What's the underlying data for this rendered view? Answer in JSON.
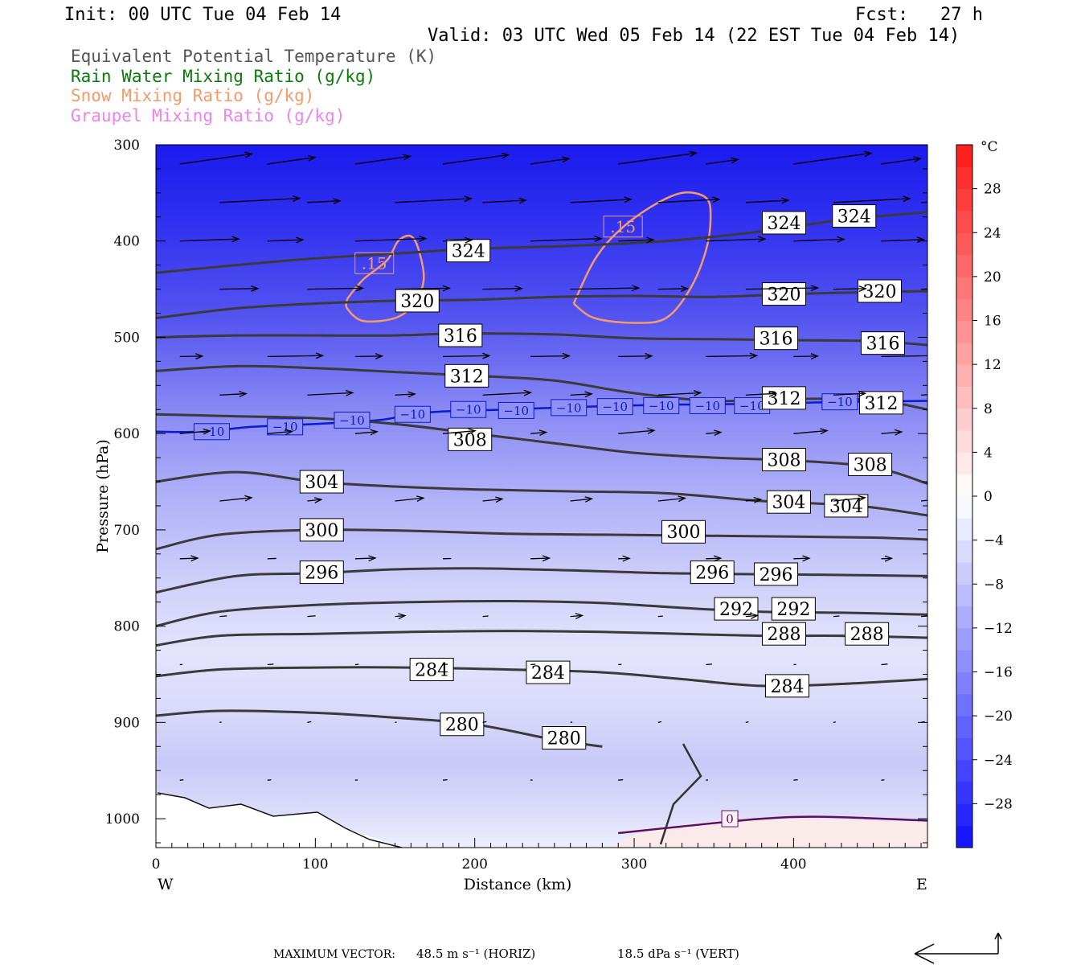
{
  "header": {
    "init": "Init: 00 UTC Tue 04 Feb 14",
    "fcst": "Fcst:   27 h",
    "valid": "Valid: 03 UTC Wed 05 Feb 14 (22 EST Tue 04 Feb 14)"
  },
  "variables": [
    {
      "label": "Equivalent Potential Temperature (K)",
      "color": "#555555"
    },
    {
      "label": "Rain Water Mixing Ratio (g/kg)",
      "color": "#0a7a0a"
    },
    {
      "label": "Snow Mixing Ratio (g/kg)",
      "color": "#f59a6a"
    },
    {
      "label": "Graupel Mixing Ratio (g/kg)",
      "color": "#ee82ee"
    }
  ],
  "chart_data": {
    "type": "cross-section",
    "xlabel": "Distance (km)",
    "ylabel": "Pressure (hPa)",
    "xlim": [
      0,
      484
    ],
    "ylim": [
      1030,
      300
    ],
    "x_ticks": [
      0,
      100,
      200,
      300,
      400
    ],
    "y_ticks": [
      300,
      400,
      500,
      600,
      700,
      800,
      900,
      1000
    ],
    "x_end_labels": {
      "left": "W",
      "right": "E"
    },
    "colorbar": {
      "unit": "°C",
      "ticks": [
        28,
        24,
        20,
        16,
        12,
        8,
        4,
        0,
        -4,
        -8,
        -12,
        -16,
        -20,
        -24,
        -28
      ],
      "range": [
        -32,
        32
      ]
    },
    "theta_e_contours": [
      {
        "value": 324,
        "points": [
          [
            0,
            433
          ],
          [
            50,
            425
          ],
          [
            100,
            418
          ],
          [
            150,
            413
          ],
          [
            200,
            408
          ],
          [
            260,
            405
          ],
          [
            320,
            400
          ],
          [
            380,
            390
          ],
          [
            430,
            378
          ],
          [
            484,
            370
          ]
        ],
        "labels": [
          [
            196,
            410
          ],
          [
            394,
            381
          ],
          [
            438,
            374
          ]
        ]
      },
      {
        "value": 320,
        "points": [
          [
            0,
            480
          ],
          [
            50,
            470
          ],
          [
            100,
            465
          ],
          [
            150,
            462
          ],
          [
            200,
            461
          ],
          [
            250,
            458
          ],
          [
            300,
            457
          ],
          [
            350,
            458
          ],
          [
            400,
            455
          ],
          [
            450,
            453
          ],
          [
            484,
            452
          ]
        ],
        "labels": [
          [
            164,
            462
          ],
          [
            394,
            455
          ],
          [
            454,
            452
          ]
        ]
      },
      {
        "value": 316,
        "points": [
          [
            0,
            500
          ],
          [
            50,
            498
          ],
          [
            100,
            498
          ],
          [
            150,
            498
          ],
          [
            190,
            496
          ],
          [
            250,
            497
          ],
          [
            300,
            501
          ],
          [
            350,
            502
          ],
          [
            400,
            503
          ],
          [
            450,
            504
          ],
          [
            484,
            508
          ]
        ],
        "labels": [
          [
            191,
            498
          ],
          [
            389,
            501
          ],
          [
            456,
            506
          ]
        ]
      },
      {
        "value": 312,
        "points": [
          [
            0,
            535
          ],
          [
            50,
            530
          ],
          [
            100,
            532
          ],
          [
            150,
            536
          ],
          [
            200,
            540
          ],
          [
            250,
            545
          ],
          [
            300,
            558
          ],
          [
            350,
            566
          ],
          [
            400,
            564
          ],
          [
            450,
            565
          ],
          [
            484,
            575
          ]
        ],
        "labels": [
          [
            195,
            540
          ],
          [
            394,
            563
          ],
          [
            455,
            568
          ]
        ]
      },
      {
        "value": 308,
        "points": [
          [
            0,
            580
          ],
          [
            50,
            582
          ],
          [
            100,
            584
          ],
          [
            150,
            590
          ],
          [
            200,
            600
          ],
          [
            250,
            610
          ],
          [
            300,
            620
          ],
          [
            350,
            625
          ],
          [
            400,
            628
          ],
          [
            450,
            635
          ],
          [
            484,
            652
          ]
        ],
        "labels": [
          [
            197,
            606
          ],
          [
            394,
            627
          ],
          [
            448,
            632
          ]
        ]
      },
      {
        "value": 304,
        "points": [
          [
            0,
            650
          ],
          [
            50,
            640
          ],
          [
            100,
            650
          ],
          [
            150,
            655
          ],
          [
            200,
            658
          ],
          [
            260,
            660
          ],
          [
            320,
            662
          ],
          [
            380,
            670
          ],
          [
            440,
            675
          ],
          [
            484,
            685
          ]
        ],
        "labels": [
          [
            104,
            650
          ],
          [
            397,
            671
          ],
          [
            433,
            675
          ]
        ]
      },
      {
        "value": 300,
        "points": [
          [
            0,
            720
          ],
          [
            40,
            705
          ],
          [
            100,
            700
          ],
          [
            160,
            701
          ],
          [
            220,
            704
          ],
          [
            280,
            705
          ],
          [
            340,
            706
          ],
          [
            400,
            707
          ],
          [
            450,
            708
          ],
          [
            484,
            710
          ]
        ],
        "labels": [
          [
            104,
            700
          ],
          [
            331,
            702
          ]
        ]
      },
      {
        "value": 296,
        "points": [
          [
            0,
            765
          ],
          [
            50,
            748
          ],
          [
            100,
            745
          ],
          [
            150,
            741
          ],
          [
            200,
            740
          ],
          [
            260,
            742
          ],
          [
            320,
            745
          ],
          [
            380,
            746
          ],
          [
            440,
            747
          ],
          [
            484,
            748
          ]
        ],
        "labels": [
          [
            104,
            744
          ],
          [
            349,
            744
          ],
          [
            389,
            746
          ]
        ]
      },
      {
        "value": 292,
        "points": [
          [
            0,
            800
          ],
          [
            40,
            785
          ],
          [
            100,
            778
          ],
          [
            160,
            775
          ],
          [
            220,
            774
          ],
          [
            280,
            776
          ],
          [
            330,
            781
          ],
          [
            380,
            785
          ],
          [
            430,
            786
          ],
          [
            484,
            788
          ]
        ],
        "labels": [
          [
            364,
            782
          ],
          [
            400,
            782
          ]
        ]
      },
      {
        "value": 288,
        "points": [
          [
            0,
            820
          ],
          [
            40,
            810
          ],
          [
            100,
            808
          ],
          [
            160,
            806
          ],
          [
            220,
            805
          ],
          [
            280,
            806
          ],
          [
            330,
            808
          ],
          [
            380,
            810
          ],
          [
            430,
            810
          ],
          [
            484,
            812
          ]
        ],
        "labels": [
          [
            394,
            808
          ],
          [
            446,
            808
          ]
        ]
      },
      {
        "value": 284,
        "points": [
          [
            0,
            852
          ],
          [
            40,
            845
          ],
          [
            100,
            843
          ],
          [
            160,
            843
          ],
          [
            220,
            845
          ],
          [
            280,
            848
          ],
          [
            330,
            855
          ],
          [
            380,
            862
          ],
          [
            430,
            860
          ],
          [
            484,
            855
          ]
        ],
        "labels": [
          [
            173,
            845
          ],
          [
            246,
            848
          ],
          [
            396,
            862
          ]
        ]
      },
      {
        "value": 280,
        "points": [
          [
            0,
            893
          ],
          [
            40,
            888
          ],
          [
            100,
            890
          ],
          [
            150,
            895
          ],
          [
            200,
            902
          ],
          [
            250,
            918
          ],
          [
            280,
            925
          ]
        ],
        "labels": [
          [
            192,
            902
          ],
          [
            256,
            916
          ]
        ]
      }
    ],
    "temperature_isotherms": [
      {
        "value": -10,
        "color": "#0a1acc",
        "points": [
          [
            0,
            598
          ],
          [
            30,
            598
          ],
          [
            60,
            593
          ],
          [
            100,
            590
          ],
          [
            140,
            586
          ],
          [
            160,
            580
          ],
          [
            180,
            577
          ],
          [
            220,
            575
          ],
          [
            270,
            572
          ],
          [
            320,
            570
          ],
          [
            380,
            569
          ],
          [
            430,
            567
          ],
          [
            484,
            566
          ]
        ],
        "labels": [
          [
            35,
            598
          ],
          [
            81,
            593
          ],
          [
            123,
            586
          ],
          [
            161,
            580
          ],
          [
            196,
            575
          ],
          [
            226,
            576
          ],
          [
            259,
            573
          ],
          [
            288,
            572
          ],
          [
            317,
            571
          ],
          [
            346,
            571
          ],
          [
            374,
            571
          ],
          [
            429,
            567
          ]
        ]
      },
      {
        "value": 0,
        "color": "#5a1060",
        "points": [
          [
            290,
            1015
          ],
          [
            330,
            1008
          ],
          [
            380,
            1000
          ],
          [
            420,
            998
          ],
          [
            484,
            1002
          ]
        ],
        "labels": [
          [
            360,
            1000
          ]
        ]
      }
    ],
    "snow_contours": [
      {
        "value": 0.15,
        "points": [
          [
            120,
            460
          ],
          [
            130,
            440
          ],
          [
            145,
            420
          ],
          [
            152,
            400
          ],
          [
            160,
            395
          ],
          [
            165,
            410
          ],
          [
            168,
            440
          ],
          [
            162,
            465
          ],
          [
            150,
            480
          ],
          [
            130,
            483
          ],
          [
            120,
            470
          ],
          [
            120,
            460
          ]
        ],
        "labels": [
          [
            137,
            423
          ]
        ]
      },
      {
        "value": 0.15,
        "points": [
          [
            262,
            465
          ],
          [
            275,
            420
          ],
          [
            290,
            390
          ],
          [
            310,
            365
          ],
          [
            330,
            350
          ],
          [
            345,
            355
          ],
          [
            348,
            375
          ],
          [
            345,
            410
          ],
          [
            335,
            450
          ],
          [
            320,
            480
          ],
          [
            300,
            485
          ],
          [
            275,
            480
          ],
          [
            262,
            465
          ]
        ],
        "labels": [
          [
            293,
            385
          ]
        ]
      }
    ],
    "max_vector": {
      "label": "MAXIMUM VECTOR:",
      "horiz": "48.5 m s⁻¹ (HORIZ)",
      "vert": "18.5 dPa s⁻¹ (VERT)"
    }
  }
}
